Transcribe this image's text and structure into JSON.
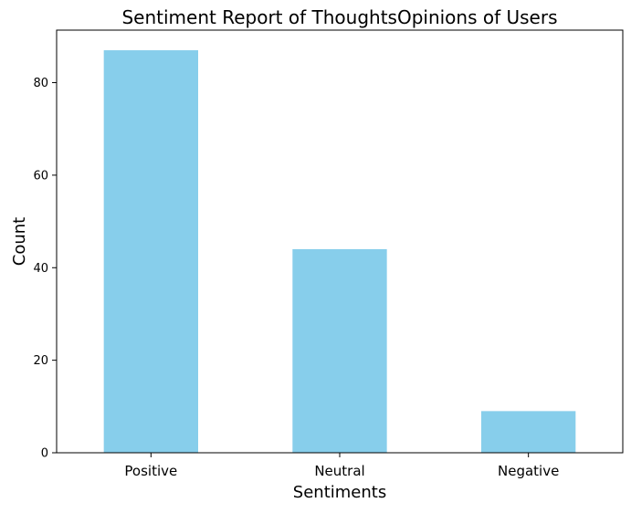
{
  "chart_data": {
    "type": "bar",
    "title": "Sentiment Report of ThoughtsOpinions of Users",
    "xlabel": "Sentiments",
    "ylabel": "Count",
    "categories": [
      "Positive",
      "Neutral",
      "Negative"
    ],
    "values": [
      87,
      44,
      9
    ],
    "ylim": [
      0,
      91.35
    ],
    "yticks": [
      0,
      20,
      40,
      60,
      80
    ],
    "bar_color": "#87ceeb",
    "grid": false,
    "legend": "none"
  }
}
